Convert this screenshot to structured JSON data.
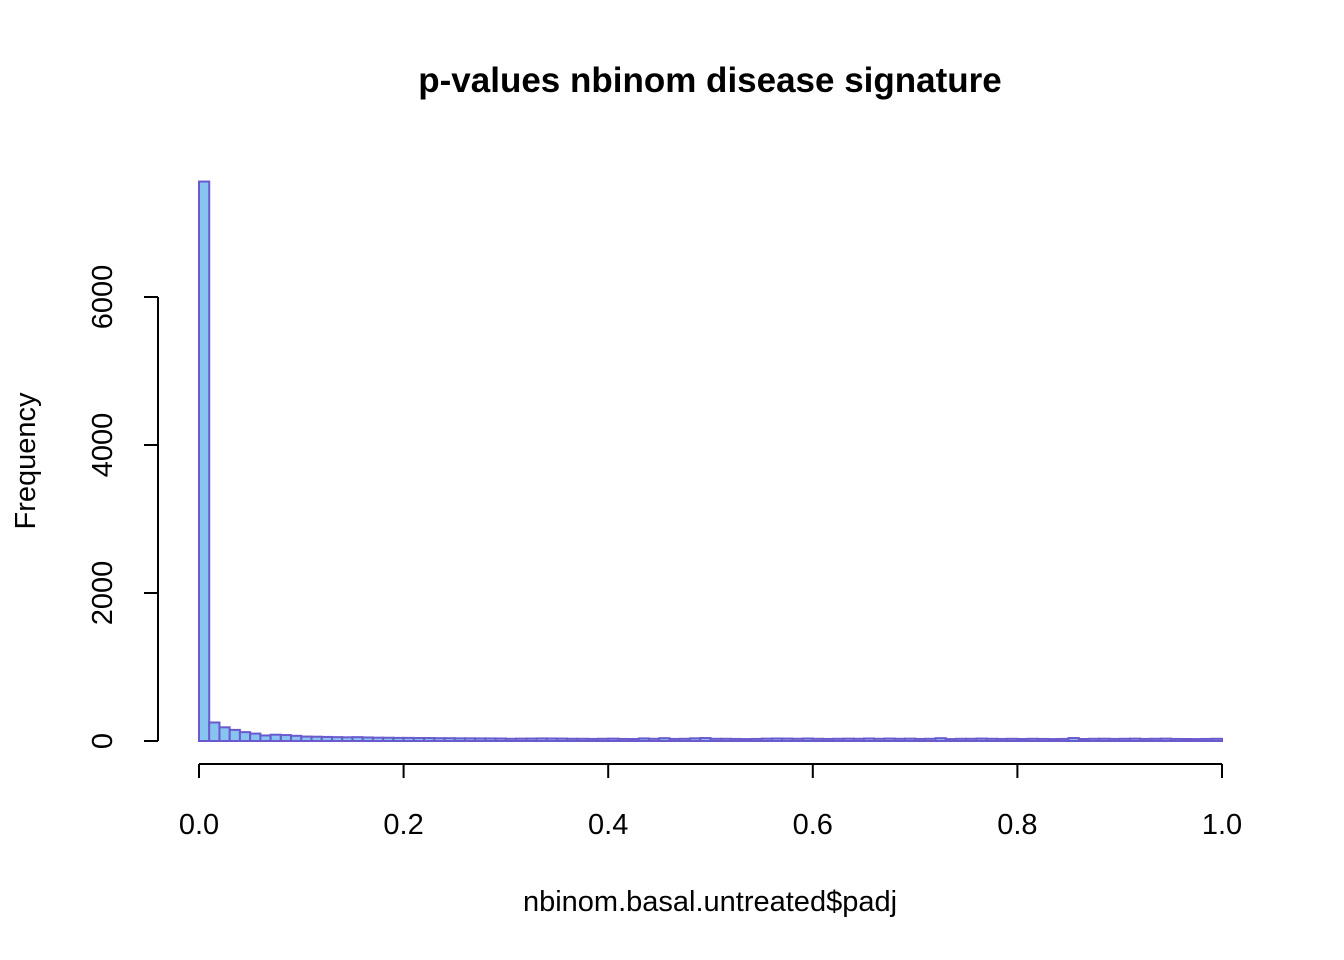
{
  "chart_data": {
    "type": "bar",
    "title": "p-values nbinom disease signature",
    "xlabel": "nbinom.basal.untreated$padj",
    "ylabel": "Frequency",
    "xlim": [
      0,
      1
    ],
    "ylim": [
      0,
      7600
    ],
    "x_ticks": [
      0.0,
      0.2,
      0.4,
      0.6,
      0.8,
      1.0
    ],
    "x_tick_labels": [
      "0.0",
      "0.2",
      "0.4",
      "0.6",
      "0.8",
      "1.0"
    ],
    "y_ticks": [
      0,
      2000,
      4000,
      6000
    ],
    "y_tick_labels": [
      "0",
      "2000",
      "4000",
      "6000"
    ],
    "bin_width": 0.01,
    "bar_fill": "#87C4F0",
    "bar_border": "#6A5ACD",
    "grid": false,
    "legend": "none",
    "values": [
      7560,
      250,
      185,
      150,
      120,
      100,
      75,
      85,
      80,
      70,
      60,
      58,
      55,
      52,
      50,
      52,
      48,
      45,
      44,
      42,
      42,
      40,
      40,
      38,
      38,
      36,
      36,
      35,
      35,
      34,
      30,
      32,
      33,
      35,
      34,
      33,
      30,
      30,
      28,
      30,
      32,
      28,
      27,
      35,
      30,
      38,
      28,
      30,
      36,
      40,
      30,
      30,
      28,
      26,
      28,
      32,
      34,
      33,
      30,
      34,
      30,
      28,
      30,
      32,
      30,
      34,
      30,
      33,
      30,
      32,
      28,
      30,
      38,
      26,
      30,
      30,
      33,
      30,
      28,
      30,
      27,
      30,
      28,
      26,
      28,
      40,
      27,
      30,
      31,
      28,
      30,
      32,
      28,
      30,
      32,
      28,
      27,
      26,
      28,
      30
    ]
  }
}
